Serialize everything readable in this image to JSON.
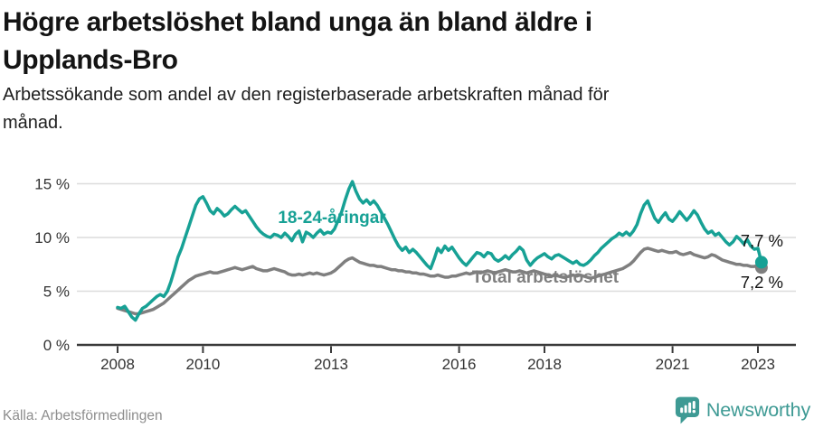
{
  "header": {
    "title_lines": [
      "Högre arbetslöshet bland unga än bland äldre i",
      "Upplands-Bro"
    ],
    "subtitle_lines": [
      "Arbetssökande som andel av den registerbaserade arbetskraften månad för",
      "månad."
    ]
  },
  "chart_data": {
    "type": "line",
    "title": "Högre arbetslöshet bland unga än bland äldre i Upplands-Bro",
    "subtitle": "Arbetssökande som andel av den registerbaserade arbetskraften månad för månad.",
    "unit": "%",
    "frequency": "monthly",
    "x_start": "2008-01",
    "x_end": "2023-02",
    "ylim": [
      0,
      15.5
    ],
    "grid": true,
    "legend_position": "inline-labels",
    "y_ticks": [
      {
        "value": 0,
        "label": "0 %"
      },
      {
        "value": 5,
        "label": "5 %"
      },
      {
        "value": 10,
        "label": "10 %"
      },
      {
        "value": 15,
        "label": "15 %"
      }
    ],
    "x_ticks": [
      {
        "year": 2008,
        "label": "2008"
      },
      {
        "year": 2010,
        "label": "2010"
      },
      {
        "year": 2013,
        "label": "2013"
      },
      {
        "year": 2016,
        "label": "2016"
      },
      {
        "year": 2018,
        "label": "2018"
      },
      {
        "year": 2021,
        "label": "2021"
      },
      {
        "year": 2023,
        "label": "2023"
      }
    ],
    "series": [
      {
        "name": "18-24-åringar",
        "color": "#17a195",
        "end_label": "7,7 %",
        "end_value": 7.7,
        "values": [
          3.5,
          3.4,
          3.6,
          3.1,
          2.6,
          2.3,
          2.9,
          3.4,
          3.6,
          3.9,
          4.2,
          4.5,
          4.7,
          4.5,
          5.0,
          5.9,
          7.0,
          8.2,
          9.0,
          10.0,
          11.0,
          12.0,
          13.0,
          13.6,
          13.8,
          13.2,
          12.5,
          12.2,
          12.7,
          12.4,
          12.0,
          12.2,
          12.6,
          12.9,
          12.6,
          12.3,
          12.5,
          12.0,
          11.5,
          11.0,
          10.6,
          10.3,
          10.1,
          10.0,
          10.3,
          10.2,
          10.0,
          10.4,
          10.1,
          9.7,
          10.3,
          10.6,
          9.6,
          10.5,
          10.3,
          10.0,
          10.4,
          10.7,
          10.3,
          10.5,
          10.4,
          10.8,
          11.6,
          12.4,
          13.5,
          14.5,
          15.2,
          14.3,
          13.6,
          13.2,
          13.5,
          13.1,
          13.4,
          13.0,
          12.4,
          11.8,
          11.2,
          10.5,
          9.8,
          9.2,
          8.8,
          9.1,
          8.6,
          8.9,
          8.6,
          8.2,
          7.8,
          7.4,
          7.1,
          8.0,
          9.0,
          8.6,
          9.2,
          8.8,
          9.1,
          8.6,
          8.1,
          7.7,
          7.4,
          7.8,
          8.2,
          8.6,
          8.5,
          8.2,
          8.6,
          8.5,
          8.0,
          7.8,
          8.0,
          8.3,
          8.0,
          8.4,
          8.7,
          9.1,
          8.8,
          7.9,
          7.4,
          7.8,
          8.1,
          8.3,
          8.5,
          8.2,
          8.0,
          8.3,
          8.4,
          8.2,
          8.0,
          7.8,
          7.6,
          7.8,
          7.5,
          7.4,
          7.6,
          7.9,
          8.3,
          8.6,
          9.0,
          9.3,
          9.6,
          9.9,
          10.1,
          10.4,
          10.2,
          10.5,
          10.2,
          10.6,
          11.2,
          12.2,
          13.0,
          13.4,
          12.6,
          11.8,
          11.4,
          11.9,
          12.3,
          11.7,
          11.5,
          11.9,
          12.4,
          12.0,
          11.6,
          12.0,
          12.5,
          12.1,
          11.4,
          10.8,
          10.4,
          10.6,
          10.2,
          10.4,
          10.0,
          9.6,
          9.3,
          9.6,
          10.1,
          9.8,
          9.4,
          9.8,
          9.2,
          8.9,
          9.0,
          7.7
        ]
      },
      {
        "name": "Total arbetslöshet",
        "color": "#7f7f7f",
        "end_label": "7,2 %",
        "end_value": 7.2,
        "values": [
          3.4,
          3.3,
          3.2,
          3.1,
          3.0,
          2.9,
          2.9,
          3.0,
          3.1,
          3.2,
          3.3,
          3.5,
          3.7,
          3.9,
          4.2,
          4.5,
          4.8,
          5.1,
          5.4,
          5.7,
          6.0,
          6.2,
          6.4,
          6.5,
          6.6,
          6.7,
          6.8,
          6.7,
          6.7,
          6.8,
          6.9,
          7.0,
          7.1,
          7.2,
          7.1,
          7.0,
          7.1,
          7.2,
          7.3,
          7.1,
          7.0,
          6.9,
          6.9,
          7.0,
          7.1,
          7.0,
          6.9,
          6.8,
          6.6,
          6.5,
          6.5,
          6.6,
          6.5,
          6.6,
          6.7,
          6.6,
          6.7,
          6.6,
          6.5,
          6.6,
          6.7,
          6.9,
          7.2,
          7.5,
          7.8,
          8.0,
          8.1,
          7.9,
          7.7,
          7.6,
          7.5,
          7.4,
          7.4,
          7.3,
          7.3,
          7.2,
          7.1,
          7.0,
          7.0,
          6.9,
          6.9,
          6.8,
          6.8,
          6.7,
          6.7,
          6.6,
          6.6,
          6.5,
          6.4,
          6.4,
          6.5,
          6.4,
          6.3,
          6.3,
          6.4,
          6.4,
          6.5,
          6.6,
          6.7,
          6.6,
          6.7,
          6.8,
          6.7,
          6.8,
          6.9,
          6.8,
          6.7,
          6.8,
          6.9,
          7.0,
          6.9,
          6.8,
          6.8,
          6.9,
          6.8,
          6.7,
          6.8,
          6.9,
          6.8,
          6.7,
          6.6,
          6.5,
          6.4,
          6.5,
          6.4,
          6.3,
          6.3,
          6.4,
          6.5,
          6.4,
          6.5,
          6.4,
          6.3,
          6.2,
          6.3,
          6.4,
          6.5,
          6.6,
          6.7,
          6.8,
          6.9,
          7.0,
          7.1,
          7.3,
          7.5,
          7.8,
          8.2,
          8.6,
          8.9,
          9.0,
          8.9,
          8.8,
          8.7,
          8.8,
          8.7,
          8.6,
          8.6,
          8.7,
          8.5,
          8.4,
          8.5,
          8.6,
          8.4,
          8.3,
          8.2,
          8.1,
          8.2,
          8.4,
          8.3,
          8.1,
          7.9,
          7.8,
          7.7,
          7.6,
          7.5,
          7.5,
          7.4,
          7.4,
          7.3,
          7.3,
          7.4,
          7.2
        ]
      }
    ]
  },
  "footer": {
    "source": "Källa: Arbetsförmedlingen",
    "brand": "Newsworthy"
  },
  "colors": {
    "accent_teal": "#17a195",
    "series_gray": "#7f7f7f",
    "logo_teal": "#3e9a94",
    "grid": "#dcdcdc",
    "axis": "#3a3a3a",
    "text": "#111111",
    "muted": "#8d8d8d"
  }
}
